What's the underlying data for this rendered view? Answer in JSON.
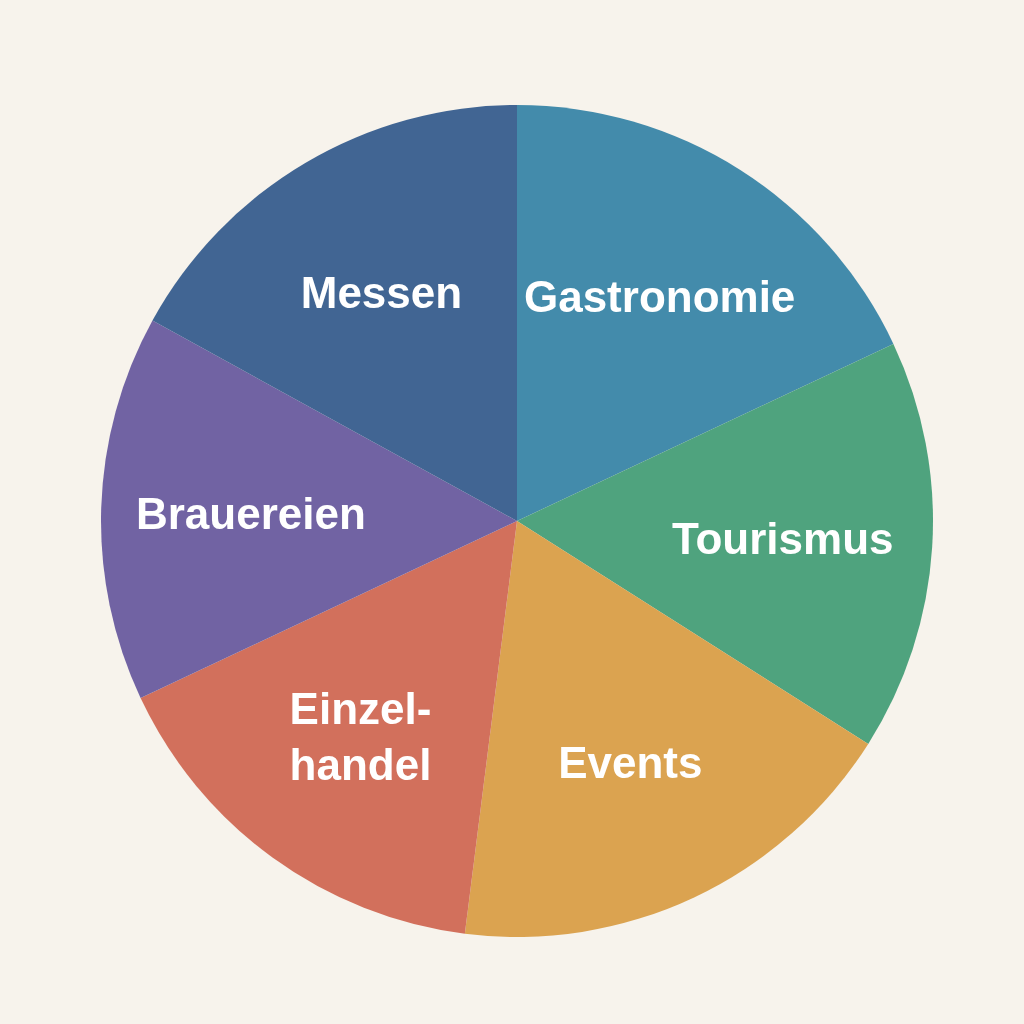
{
  "chart_data": {
    "type": "pie",
    "categories": [
      "Gastronomie",
      "Tourismus",
      "Events",
      "Einzel-\nhandel",
      "Brauereien",
      "Messen"
    ],
    "values": [
      18,
      16,
      18,
      16,
      15,
      17
    ],
    "colors": [
      "#438bab",
      "#4fa37e",
      "#dba350",
      "#d2705c",
      "#7163a3",
      "#416593"
    ]
  }
}
